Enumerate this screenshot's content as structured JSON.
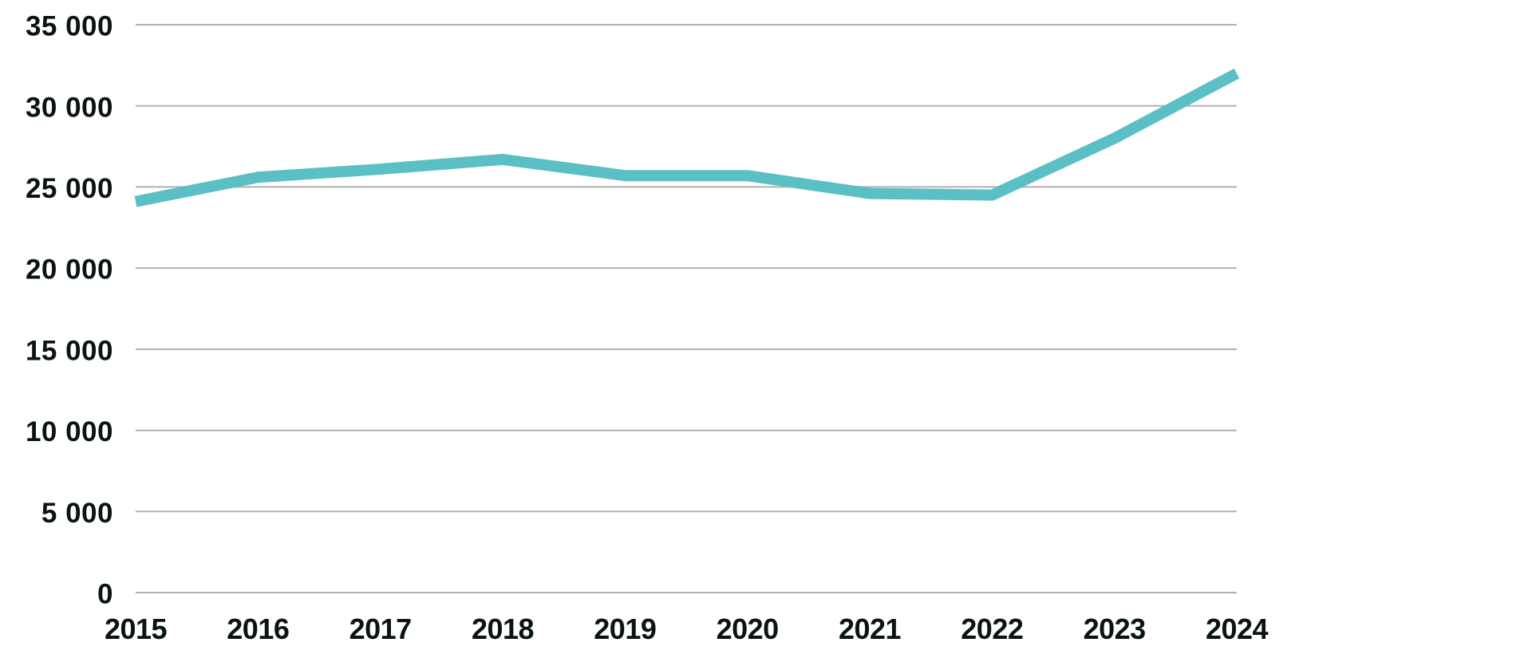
{
  "chart_data": {
    "type": "line",
    "title": "",
    "xlabel": "",
    "ylabel": "",
    "categories": [
      "2015",
      "2016",
      "2017",
      "2018",
      "2019",
      "2020",
      "2021",
      "2022",
      "2023",
      "2024"
    ],
    "values": [
      24100,
      25600,
      26100,
      26700,
      25700,
      25700,
      24600,
      24500,
      28000,
      32000
    ],
    "ylim": [
      0,
      35000
    ],
    "y_ticks": [
      0,
      5000,
      10000,
      15000,
      20000,
      25000,
      30000,
      35000
    ],
    "y_tick_labels": [
      "0",
      "5 000",
      "10 000",
      "15 000",
      "20 000",
      "25 000",
      "30 000",
      "35 000"
    ],
    "grid": "horizontal",
    "legend": "none",
    "line_width": 14,
    "colors": {
      "line": "#5bbfc6",
      "gridline": "#b0b0b0",
      "tick_text": "#0a1414",
      "background": "#ffffff"
    }
  }
}
